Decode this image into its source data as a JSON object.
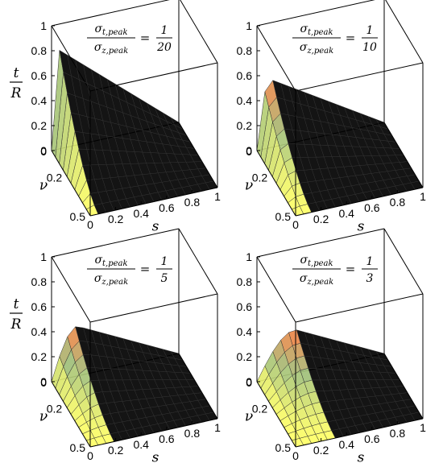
{
  "chart_data": [
    {
      "type": "surface",
      "panel_label": "top-left",
      "title": {
        "numerator": "σt,peak",
        "denominator": "σz,peak",
        "num_sub": "t,peak",
        "den_sub": "z,peak",
        "equals": "=",
        "value_numerator": "1",
        "value_denominator": "20"
      },
      "zlabel": {
        "top": "t",
        "bottom": "R"
      },
      "xlabel": "s",
      "ylabel": "ν",
      "xlim": [
        0,
        1
      ],
      "ylim": [
        0,
        0.5
      ],
      "zlim": [
        0,
        1
      ],
      "xticks": [
        "0",
        "0.2",
        "0.4",
        "0.6",
        "0.8",
        "1"
      ],
      "yticks": [
        "0",
        "0.2",
        "0.5"
      ],
      "zticks": [
        "0",
        "0.2",
        "0.4",
        "0.6",
        "0.8",
        "1"
      ],
      "peak": {
        "s": 0.05,
        "t_over_R": 0.8
      },
      "colors": {
        "low": "#ffff66",
        "high": "#ff7a3d",
        "mid": "#9fbf7a"
      }
    },
    {
      "type": "surface",
      "panel_label": "top-right",
      "title": {
        "numerator": "σt,peak",
        "denominator": "σz,peak",
        "num_sub": "t,peak",
        "den_sub": "z,peak",
        "equals": "=",
        "value_numerator": "1",
        "value_denominator": "10"
      },
      "xlabel": "s",
      "ylabel": "ν",
      "xlim": [
        0,
        1
      ],
      "ylim": [
        0,
        0.5
      ],
      "zlim": [
        0,
        1
      ],
      "xticks": [
        "0",
        "0.2",
        "0.4",
        "0.6",
        "0.8",
        "1"
      ],
      "yticks": [
        "0",
        "0.2",
        "0.5"
      ],
      "zticks": [
        "0",
        "0.2",
        "0.4",
        "0.6",
        "0.8",
        "1"
      ],
      "peak": {
        "s": 0.1,
        "t_over_R": 0.55
      },
      "colors": {
        "low": "#ffff66",
        "high": "#ff7a3d",
        "mid": "#9fbf7a"
      }
    },
    {
      "type": "surface",
      "panel_label": "bottom-left",
      "title": {
        "numerator": "σt,peak",
        "denominator": "σz,peak",
        "num_sub": "t,peak",
        "den_sub": "z,peak",
        "equals": "=",
        "value_numerator": "1",
        "value_denominator": "5"
      },
      "zlabel": {
        "top": "t",
        "bottom": "R"
      },
      "xlabel": "s",
      "ylabel": "ν",
      "xlim": [
        0,
        1
      ],
      "ylim": [
        0,
        0.5
      ],
      "zlim": [
        0,
        1
      ],
      "xticks": [
        "0",
        "0.2",
        "0.4",
        "0.6",
        "0.8",
        "1"
      ],
      "yticks": [
        "0",
        "0.2",
        "0.5"
      ],
      "zticks": [
        "0",
        "0.2",
        "0.4",
        "0.6",
        "0.8",
        "1"
      ],
      "peak": {
        "s": 0.2,
        "t_over_R": 0.4
      },
      "colors": {
        "low": "#ffff66",
        "high": "#ff7a3d",
        "mid": "#9fbf7a"
      }
    },
    {
      "type": "surface",
      "panel_label": "bottom-right",
      "title": {
        "numerator": "σt,peak",
        "denominator": "σz,peak",
        "num_sub": "t,peak",
        "den_sub": "z,peak",
        "equals": "=",
        "value_numerator": "1",
        "value_denominator": "3"
      },
      "xlabel": "s",
      "ylabel": "ν",
      "xlim": [
        0,
        1
      ],
      "ylim": [
        0,
        0.5
      ],
      "zlim": [
        0,
        1
      ],
      "xticks": [
        "0",
        "0.2",
        "0.4",
        "0.6",
        "0.8",
        "1"
      ],
      "yticks": [
        "0",
        "0.2",
        "0.5"
      ],
      "zticks": [
        "0",
        "0.2",
        "0.4",
        "0.6",
        "0.8",
        "1"
      ],
      "peak": {
        "s": 0.3,
        "t_over_R": 0.35
      },
      "colors": {
        "low": "#ffff66",
        "high": "#ff7a3d",
        "mid": "#9fbf7a"
      }
    }
  ]
}
